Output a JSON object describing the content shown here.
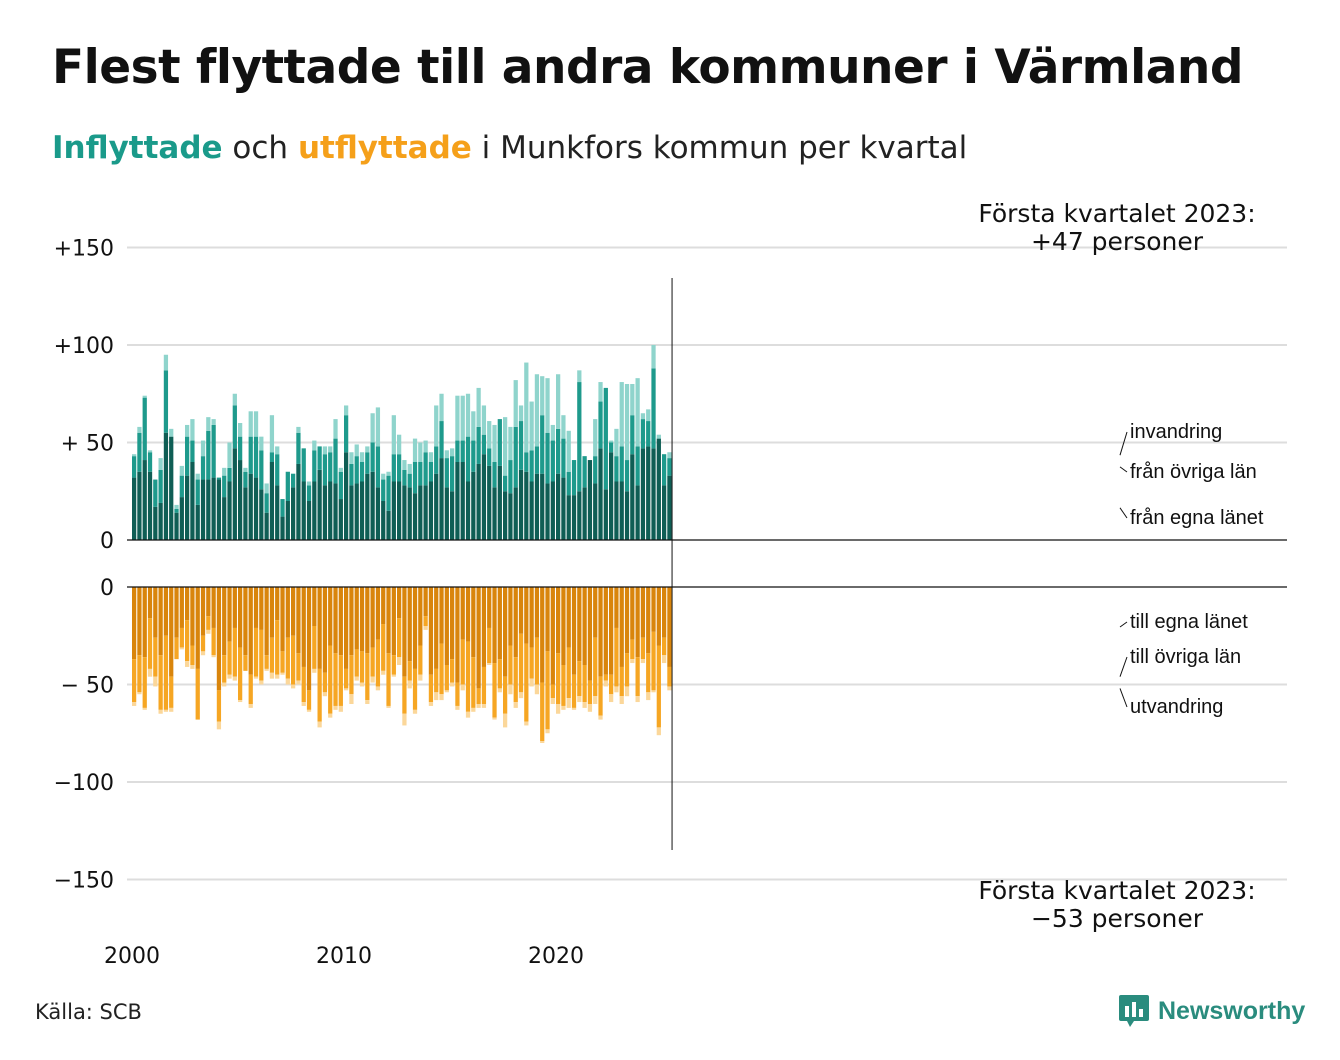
{
  "title": "Flest flyttade till andra kommuner i Värmland",
  "subtitle": {
    "in_word": "Inflyttade",
    "mid": " och ",
    "out_word": "utflyttade",
    "rest": " i Munkfors kommun per kvartal"
  },
  "source": "Källa: SCB",
  "brand": "Newsworthy",
  "colors": {
    "in_egna": "#0f5e55",
    "in_ovriga": "#1e9a8c",
    "in_invandring": "#8fd4cc",
    "out_egna": "#d9850c",
    "out_ovriga": "#f6a623",
    "out_utvandring": "#fbd79a",
    "grid": "#dddddd",
    "axis": "#111111"
  },
  "chart_data": {
    "type": "bar",
    "stacked": true,
    "x_start": "2000 Q1",
    "x_ticks": [
      "2000",
      "2010",
      "2020"
    ],
    "top": {
      "ylim": [
        0,
        150
      ],
      "y_ticks": [
        "0",
        "+ 50",
        "+100",
        "+150"
      ],
      "tick_values": [
        0,
        50,
        100,
        150
      ],
      "series": [
        {
          "name": "från egna länet",
          "values": [
            32,
            35,
            41,
            35,
            17,
            19,
            55,
            53,
            14,
            22,
            33,
            40,
            18,
            31,
            31,
            32,
            31,
            22,
            30,
            47,
            41,
            27,
            34,
            32,
            26,
            14,
            40,
            28,
            12,
            20,
            27,
            39,
            30,
            20,
            30,
            36,
            28,
            30,
            29,
            21,
            45,
            28,
            29,
            30,
            34,
            35,
            27,
            20,
            15,
            30,
            30,
            28,
            27,
            24,
            28,
            28,
            30,
            34,
            42,
            27,
            25,
            40,
            40,
            30,
            35,
            39,
            44,
            38,
            27,
            38,
            25,
            24,
            27,
            36,
            35,
            30,
            34,
            34,
            29,
            30,
            34,
            32,
            23,
            23,
            25,
            27,
            41,
            29,
            47,
            26,
            45,
            30,
            30,
            25,
            44,
            28,
            47,
            48,
            47,
            52,
            28,
            33
          ]
        },
        {
          "name": "från övriga län",
          "values": [
            11,
            20,
            32,
            10,
            14,
            17,
            32,
            0,
            2,
            11,
            20,
            11,
            13,
            12,
            25,
            27,
            1,
            11,
            7,
            22,
            12,
            8,
            19,
            21,
            20,
            10,
            5,
            16,
            9,
            15,
            7,
            16,
            17,
            8,
            16,
            12,
            16,
            15,
            23,
            14,
            19,
            11,
            14,
            10,
            11,
            15,
            21,
            11,
            18,
            14,
            14,
            8,
            7,
            16,
            12,
            17,
            10,
            14,
            19,
            15,
            18,
            11,
            11,
            23,
            16,
            19,
            10,
            9,
            13,
            24,
            8,
            17,
            31,
            25,
            10,
            16,
            14,
            30,
            26,
            21,
            23,
            20,
            12,
            18,
            56,
            16,
            0,
            14,
            24,
            52,
            5,
            13,
            18,
            16,
            20,
            20,
            15,
            13,
            41,
            0,
            16,
            9
          ]
        },
        {
          "name": "invandring",
          "values": [
            1,
            3,
            1,
            1,
            0,
            6,
            8,
            4,
            2,
            5,
            6,
            11,
            3,
            8,
            7,
            3,
            0,
            4,
            13,
            6,
            7,
            2,
            13,
            13,
            7,
            5,
            19,
            4,
            0,
            0,
            0,
            3,
            0,
            2,
            5,
            0,
            4,
            3,
            10,
            2,
            5,
            6,
            6,
            5,
            3,
            15,
            20,
            3,
            2,
            20,
            10,
            5,
            5,
            12,
            10,
            6,
            5,
            21,
            14,
            4,
            4,
            23,
            23,
            22,
            15,
            20,
            15,
            14,
            19,
            0,
            30,
            17,
            24,
            8,
            46,
            25,
            37,
            20,
            28,
            8,
            28,
            12,
            21,
            0,
            6,
            0,
            0,
            19,
            10,
            0,
            1,
            14,
            33,
            39,
            16,
            35,
            3,
            6,
            12,
            2,
            0,
            3
          ]
        }
      ]
    },
    "bottom": {
      "ylim": [
        -150,
        0
      ],
      "y_ticks": [
        "0",
        "− 50",
        "−100",
        "−150"
      ],
      "tick_values": [
        0,
        -50,
        -100,
        -150
      ],
      "series": [
        {
          "name": "till egna länet",
          "values": [
            -37,
            -35,
            -36,
            -16,
            -26,
            -35,
            -25,
            -46,
            -26,
            -21,
            -17,
            -30,
            -42,
            -25,
            -15,
            -21,
            -53,
            -35,
            -28,
            -21,
            -31,
            -35,
            -45,
            -21,
            -22,
            -35,
            -26,
            -17,
            -33,
            -26,
            -25,
            -34,
            -41,
            -53,
            -20,
            -42,
            -44,
            -30,
            -34,
            -35,
            -42,
            -35,
            -32,
            -33,
            -34,
            -31,
            -27,
            -19,
            -34,
            -35,
            -16,
            -46,
            -38,
            -42,
            -30,
            -15,
            -45,
            -42,
            -29,
            -40,
            -37,
            -49,
            -27,
            -28,
            -36,
            -52,
            -41,
            -21,
            -39,
            -37,
            -46,
            -30,
            -36,
            -24,
            -29,
            -31,
            -26,
            -49,
            -33,
            -50,
            -34,
            -40,
            -31,
            -45,
            -38,
            -40,
            -48,
            -26,
            -46,
            -45,
            -45,
            -21,
            -41,
            -34,
            -27,
            -36,
            -26,
            -34,
            -23,
            -30,
            -26,
            -41
          ]
        },
        {
          "name": "till övriga län",
          "values": [
            -22,
            -19,
            -26,
            -26,
            -20,
            -28,
            -38,
            -16,
            -11,
            -10,
            -21,
            -10,
            -26,
            -8,
            -7,
            -14,
            -16,
            -14,
            -17,
            -25,
            -27,
            -8,
            -15,
            -25,
            -26,
            -7,
            -18,
            -28,
            -11,
            -21,
            -25,
            -14,
            -18,
            -10,
            -22,
            -27,
            -10,
            -35,
            -27,
            -26,
            -10,
            -20,
            -14,
            -16,
            -24,
            -15,
            -24,
            -24,
            -27,
            -10,
            -20,
            -19,
            -10,
            -21,
            -15,
            -5,
            -14,
            -12,
            -26,
            -13,
            -12,
            -12,
            -23,
            -36,
            -26,
            -8,
            -19,
            -18,
            -28,
            -15,
            -19,
            -20,
            -23,
            -30,
            -40,
            -16,
            -24,
            -30,
            -40,
            -7,
            -26,
            -21,
            -26,
            -17,
            -18,
            -19,
            -12,
            -30,
            -20,
            -3,
            -10,
            -30,
            -15,
            -17,
            -10,
            -20,
            -11,
            -20,
            -30,
            -42,
            -9,
            -10
          ]
        },
        {
          "name": "utvandring",
          "values": [
            -2,
            -1,
            -1,
            -4,
            -5,
            -2,
            -1,
            -2,
            0,
            -1,
            -3,
            -2,
            0,
            -2,
            -2,
            -1,
            -4,
            -2,
            -2,
            -2,
            -1,
            0,
            -2,
            -1,
            -2,
            -1,
            -3,
            -2,
            -1,
            -3,
            -2,
            -2,
            -2,
            -1,
            -2,
            -3,
            -2,
            -2,
            -2,
            -3,
            -1,
            -5,
            -2,
            -2,
            -2,
            -3,
            -2,
            -2,
            -1,
            -1,
            -4,
            -6,
            -4,
            -2,
            -3,
            -2,
            -2,
            -4,
            -3,
            -1,
            -2,
            -2,
            -3,
            -3,
            -2,
            -2,
            -2,
            -1,
            -1,
            -2,
            -7,
            -5,
            -3,
            -3,
            -2,
            -4,
            -5,
            -1,
            -2,
            -3,
            -5,
            -2,
            -5,
            -1,
            -3,
            -3,
            -4,
            -4,
            -2,
            -3,
            -4,
            -3,
            -4,
            -5,
            -2,
            -3,
            -2,
            -4,
            -1,
            -4,
            -4,
            -2
          ]
        }
      ]
    },
    "annotations": {
      "top_line1": "Första kvartalet 2023:",
      "top_line2": "+47 personer",
      "bottom_line1": "Första kvartalet 2023:",
      "bottom_line2": "−53 personer"
    }
  }
}
